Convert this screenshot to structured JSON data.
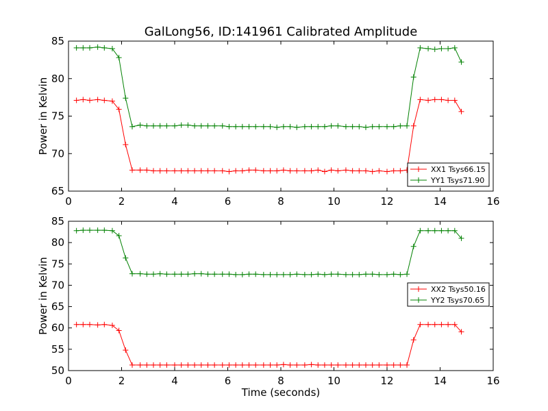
{
  "figure": {
    "title": "GalLong56, ID:141961 Calibrated Amplitude"
  },
  "chart_data": [
    {
      "type": "line",
      "title": "GalLong56, ID:141961 Calibrated Amplitude",
      "xlabel": "",
      "ylabel": "Power in Kelvin",
      "xlim": [
        0,
        16
      ],
      "ylim": [
        65,
        85
      ],
      "xticks": [
        "0",
        "2",
        "4",
        "6",
        "8",
        "10",
        "12",
        "14",
        "16"
      ],
      "yticks": [
        "65",
        "70",
        "75",
        "80",
        "85"
      ],
      "legend_position": "lower-right",
      "x": [
        0.3,
        0.55,
        0.8,
        1.1,
        1.35,
        1.65,
        1.9,
        2.15,
        2.4,
        2.7,
        2.95,
        3.2,
        3.45,
        3.7,
        4.0,
        4.25,
        4.5,
        4.75,
        5.0,
        5.25,
        5.5,
        5.8,
        6.05,
        6.3,
        6.55,
        6.8,
        7.05,
        7.35,
        7.6,
        7.85,
        8.1,
        8.35,
        8.6,
        8.9,
        9.15,
        9.4,
        9.65,
        9.9,
        10.15,
        10.45,
        10.7,
        10.95,
        11.2,
        11.45,
        11.7,
        12.0,
        12.25,
        12.5,
        12.75,
        13.0,
        13.25,
        13.55,
        13.8,
        14.05,
        14.3,
        14.55,
        14.8
      ],
      "series": [
        {
          "name": "XX1 Tsys66.15",
          "color": "#ff0000",
          "values": [
            77.1,
            77.2,
            77.1,
            77.2,
            77.1,
            77.0,
            75.9,
            71.2,
            67.8,
            67.8,
            67.8,
            67.7,
            67.7,
            67.7,
            67.7,
            67.7,
            67.7,
            67.7,
            67.7,
            67.7,
            67.7,
            67.7,
            67.6,
            67.7,
            67.7,
            67.8,
            67.8,
            67.7,
            67.7,
            67.7,
            67.8,
            67.7,
            67.7,
            67.7,
            67.7,
            67.8,
            67.6,
            67.8,
            67.7,
            67.8,
            67.7,
            67.7,
            67.7,
            67.6,
            67.7,
            67.6,
            67.7,
            67.7,
            67.8,
            73.7,
            77.2,
            77.1,
            77.2,
            77.2,
            77.1,
            77.1,
            75.6
          ]
        },
        {
          "name": "YY1 Tsys71.90",
          "color": "#008000",
          "values": [
            84.1,
            84.1,
            84.1,
            84.2,
            84.1,
            84.0,
            82.8,
            77.4,
            73.6,
            73.8,
            73.7,
            73.7,
            73.7,
            73.7,
            73.7,
            73.8,
            73.8,
            73.7,
            73.7,
            73.7,
            73.7,
            73.7,
            73.6,
            73.6,
            73.6,
            73.6,
            73.6,
            73.6,
            73.6,
            73.5,
            73.6,
            73.6,
            73.5,
            73.6,
            73.6,
            73.6,
            73.6,
            73.7,
            73.7,
            73.6,
            73.6,
            73.6,
            73.5,
            73.6,
            73.6,
            73.6,
            73.6,
            73.7,
            73.7,
            80.2,
            84.1,
            84.0,
            83.9,
            84.0,
            84.0,
            84.1,
            82.2
          ]
        }
      ]
    },
    {
      "type": "line",
      "title": "",
      "xlabel": "Time (seconds)",
      "ylabel": "Power in Kelvin",
      "xlim": [
        0,
        16
      ],
      "ylim": [
        50,
        85
      ],
      "xticks": [
        "0",
        "2",
        "4",
        "6",
        "8",
        "10",
        "12",
        "14",
        "16"
      ],
      "yticks": [
        "50",
        "55",
        "60",
        "65",
        "70",
        "75",
        "80",
        "85"
      ],
      "legend_position": "center-right",
      "x": [
        0.3,
        0.55,
        0.8,
        1.1,
        1.35,
        1.65,
        1.9,
        2.15,
        2.4,
        2.7,
        2.95,
        3.2,
        3.45,
        3.7,
        4.0,
        4.25,
        4.5,
        4.75,
        5.0,
        5.25,
        5.5,
        5.8,
        6.05,
        6.3,
        6.55,
        6.8,
        7.05,
        7.35,
        7.6,
        7.85,
        8.1,
        8.35,
        8.6,
        8.9,
        9.15,
        9.4,
        9.65,
        9.9,
        10.15,
        10.45,
        10.7,
        10.95,
        11.2,
        11.45,
        11.7,
        12.0,
        12.25,
        12.5,
        12.75,
        13.0,
        13.25,
        13.55,
        13.8,
        14.05,
        14.3,
        14.55,
        14.8
      ],
      "series": [
        {
          "name": "XX2 Tsys50.16",
          "color": "#ff0000",
          "values": [
            60.8,
            60.8,
            60.8,
            60.7,
            60.8,
            60.6,
            59.4,
            54.8,
            51.3,
            51.3,
            51.3,
            51.3,
            51.3,
            51.3,
            51.3,
            51.3,
            51.3,
            51.3,
            51.3,
            51.3,
            51.3,
            51.3,
            51.3,
            51.3,
            51.3,
            51.3,
            51.3,
            51.3,
            51.3,
            51.3,
            51.4,
            51.3,
            51.3,
            51.3,
            51.4,
            51.3,
            51.3,
            51.3,
            51.3,
            51.3,
            51.3,
            51.3,
            51.3,
            51.3,
            51.3,
            51.3,
            51.3,
            51.3,
            51.3,
            57.2,
            60.8,
            60.8,
            60.8,
            60.8,
            60.8,
            60.8,
            59.1
          ]
        },
        {
          "name": "YY2 Tsys70.65",
          "color": "#008000",
          "values": [
            82.8,
            82.9,
            82.9,
            82.9,
            82.9,
            82.8,
            81.6,
            76.4,
            72.7,
            72.7,
            72.6,
            72.6,
            72.7,
            72.6,
            72.6,
            72.6,
            72.6,
            72.7,
            72.7,
            72.6,
            72.6,
            72.6,
            72.6,
            72.5,
            72.5,
            72.6,
            72.6,
            72.5,
            72.5,
            72.5,
            72.5,
            72.5,
            72.6,
            72.5,
            72.5,
            72.6,
            72.5,
            72.6,
            72.6,
            72.5,
            72.5,
            72.5,
            72.6,
            72.6,
            72.5,
            72.5,
            72.6,
            72.5,
            72.6,
            79.1,
            82.8,
            82.8,
            82.8,
            82.8,
            82.8,
            82.8,
            81.0
          ]
        }
      ]
    }
  ]
}
